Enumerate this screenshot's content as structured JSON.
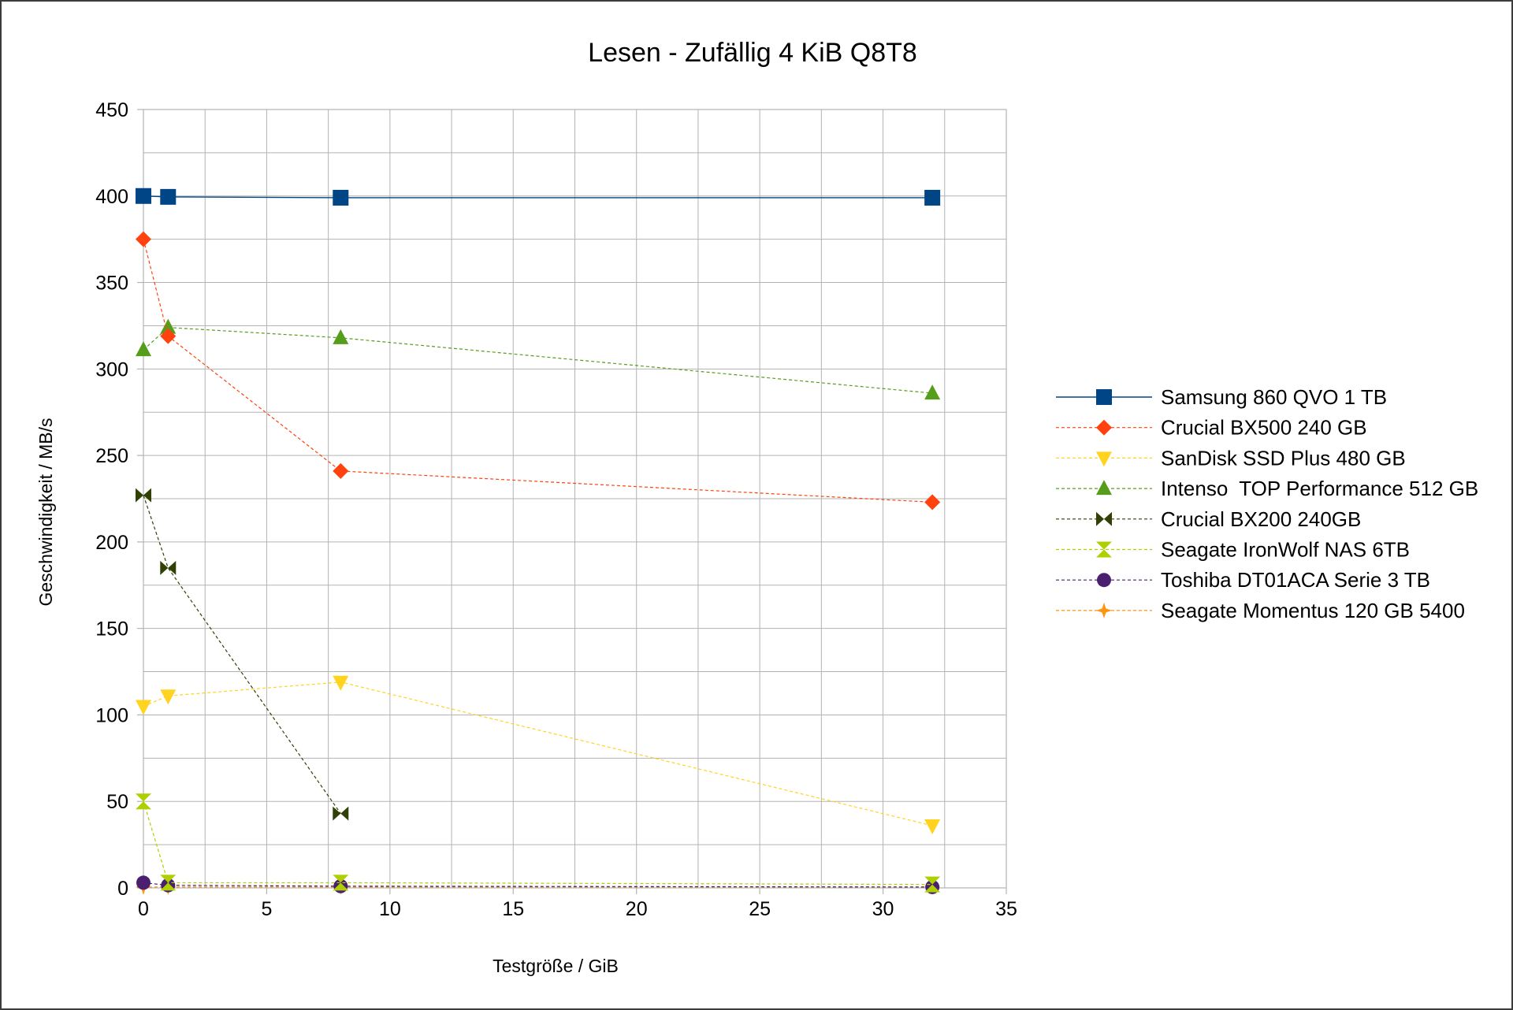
{
  "chart_data": {
    "type": "line",
    "title": "Lesen - Zufällig 4 KiB Q8T8",
    "xlabel": "Testgröße / GiB",
    "ylabel": "Geschwindigkeit / MB/s",
    "xlim": [
      0,
      35
    ],
    "ylim": [
      0,
      450
    ],
    "x_ticks": [
      0,
      5,
      10,
      15,
      20,
      25,
      30,
      35
    ],
    "y_ticks": [
      0,
      50,
      100,
      150,
      200,
      250,
      300,
      350,
      400,
      450
    ],
    "grid": true,
    "legend_position": "right",
    "series": [
      {
        "name": "Samsung 860 QVO 1 TB",
        "color": "#004586",
        "marker": "square",
        "line": "solid",
        "points": [
          [
            0,
            400
          ],
          [
            1,
            399.5
          ],
          [
            8,
            399
          ],
          [
            32,
            399
          ]
        ]
      },
      {
        "name": "Crucial BX500 240 GB",
        "color": "#ff420e",
        "marker": "diamond",
        "line": "dashed",
        "points": [
          [
            0,
            375
          ],
          [
            1,
            319
          ],
          [
            8,
            241
          ],
          [
            32,
            223
          ]
        ]
      },
      {
        "name": "SanDisk SSD Plus 480 GB",
        "color": "#ffd320",
        "marker": "triangle-down",
        "line": "dashed",
        "points": [
          [
            0,
            105
          ],
          [
            1,
            111
          ],
          [
            8,
            119
          ],
          [
            32,
            36
          ]
        ]
      },
      {
        "name": "Intenso  TOP Performance 512 GB",
        "color": "#579d1c",
        "marker": "triangle-up",
        "line": "dashed",
        "points": [
          [
            0,
            311
          ],
          [
            1,
            324
          ],
          [
            8,
            318
          ],
          [
            32,
            286
          ]
        ]
      },
      {
        "name": "Crucial BX200 240GB",
        "color": "#314004",
        "marker": "bowtie",
        "line": "dashed",
        "points": [
          [
            0,
            227
          ],
          [
            1,
            185
          ],
          [
            8,
            43
          ]
        ]
      },
      {
        "name": "Seagate IronWolf NAS 6TB",
        "color": "#aecf00",
        "marker": "hourglass",
        "line": "dashed",
        "points": [
          [
            0,
            50
          ],
          [
            1,
            3
          ],
          [
            8,
            3
          ],
          [
            32,
            2
          ]
        ]
      },
      {
        "name": "Toshiba DT01ACA Serie 3 TB",
        "color": "#4b1f6f",
        "marker": "circle",
        "line": "dashed",
        "points": [
          [
            0,
            3
          ],
          [
            1,
            1.5
          ],
          [
            8,
            1
          ],
          [
            32,
            0.5
          ]
        ]
      },
      {
        "name": "Seagate Momentus 120 GB 5400",
        "color": "#ff950e",
        "marker": "star",
        "line": "dashed",
        "points": [
          [
            0,
            0.5
          ],
          [
            1,
            0.5
          ],
          [
            8,
            0.5
          ],
          [
            32,
            0.5
          ]
        ]
      }
    ]
  }
}
